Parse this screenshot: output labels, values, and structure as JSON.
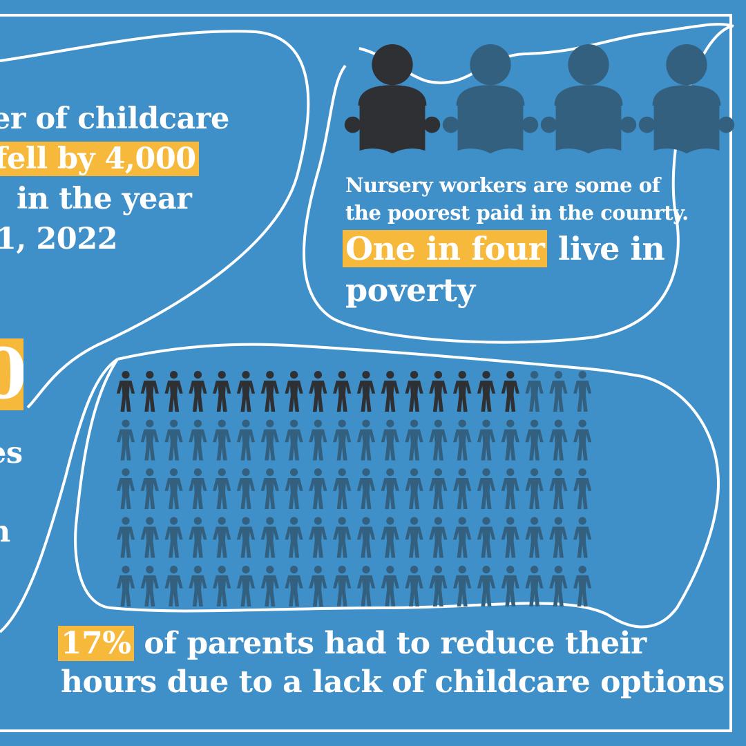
{
  "colors": {
    "background": "#3f8fc9",
    "highlight": "#f6b93b",
    "text": "#ffffff",
    "dark_figure": "#2f3033",
    "faded_figure": "#34607f"
  },
  "left_panel": {
    "lines": [
      "er of childcare",
      "fell by 4,000",
      "in the year",
      "1, 2022"
    ],
    "number_fragment": "0",
    "bottom_fragments": [
      "es",
      "n"
    ]
  },
  "nursery_panel": {
    "icon_names": [
      "reader-icon",
      "reader-icon",
      "reader-icon",
      "reader-icon"
    ],
    "highlighted_readers": 1,
    "total_readers": 4,
    "line1": "Nursery workers are some of",
    "line2": "the poorest paid in the counrty.",
    "highlight": "One in four",
    "rest": "live in",
    "line4": "poverty"
  },
  "parents_panel": {
    "people_total": 100,
    "people_highlighted": 17,
    "icon_name": "person-icon",
    "highlight": "17%",
    "line1_rest": "of parents had to reduce their",
    "line2": "hours due to a lack of childcare options"
  }
}
